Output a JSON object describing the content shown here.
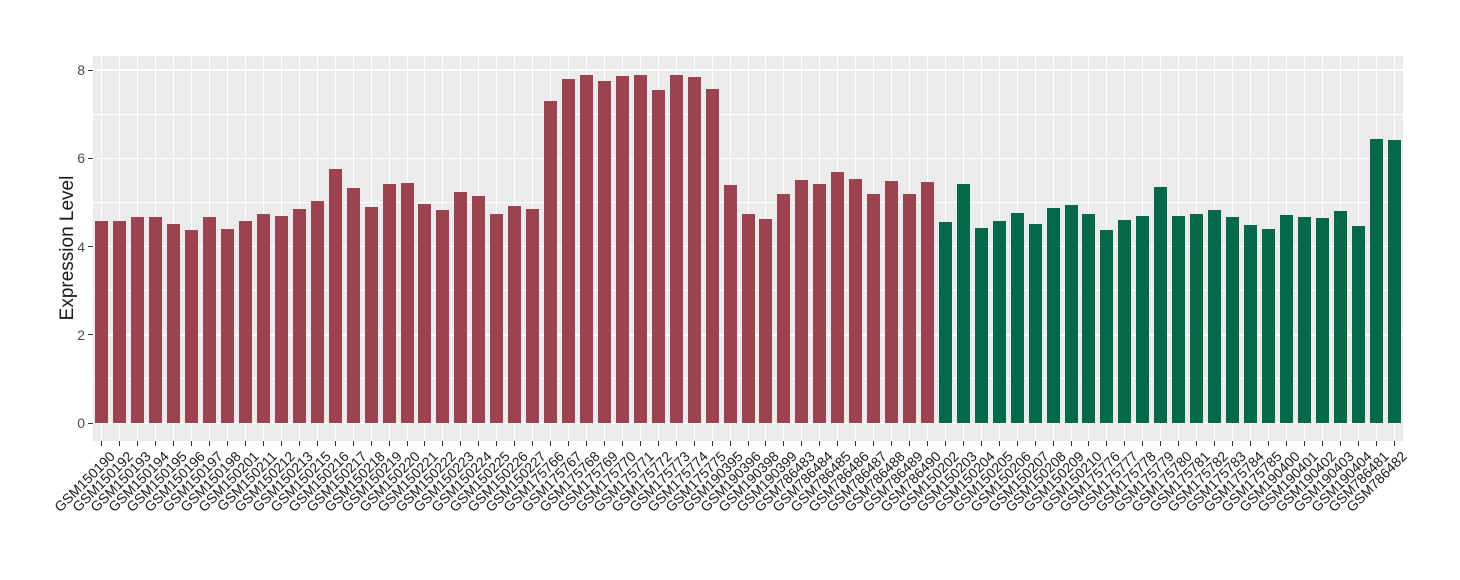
{
  "chart_data": {
    "type": "bar",
    "title": "",
    "xlabel": "",
    "ylabel": "Expression Level",
    "ylim": [
      0,
      8.4
    ],
    "yticks": [
      0,
      2,
      4,
      6,
      8
    ],
    "grid": true,
    "legend": false,
    "plot_background": "#EBEBEB",
    "gridline_color": "#FFFFFF",
    "tick_color": "#333333",
    "group_colors": {
      "red": "#9C4350",
      "green": "#04684B"
    },
    "categories": [
      "GSM150190",
      "GSM150192",
      "GSM150193",
      "GSM150194",
      "GSM150195",
      "GSM150196",
      "GSM150197",
      "GSM150198",
      "GSM150201",
      "GSM150211",
      "GSM150212",
      "GSM150213",
      "GSM150215",
      "GSM150216",
      "GSM150217",
      "GSM150218",
      "GSM150219",
      "GSM150220",
      "GSM150221",
      "GSM150222",
      "GSM150223",
      "GSM150224",
      "GSM150225",
      "GSM150226",
      "GSM150227",
      "GSM175766",
      "GSM175767",
      "GSM175768",
      "GSM175769",
      "GSM175770",
      "GSM175771",
      "GSM175772",
      "GSM175773",
      "GSM175774",
      "GSM175775",
      "GSM190395",
      "GSM190396",
      "GSM190398",
      "GSM190399",
      "GSM786483",
      "GSM786484",
      "GSM786485",
      "GSM786486",
      "GSM786487",
      "GSM786488",
      "GSM786489",
      "GSM786490",
      "GSM150202",
      "GSM150203",
      "GSM150204",
      "GSM150205",
      "GSM150206",
      "GSM150207",
      "GSM150208",
      "GSM150209",
      "GSM150210",
      "GSM175776",
      "GSM175777",
      "GSM175778",
      "GSM175779",
      "GSM175780",
      "GSM175781",
      "GSM175782",
      "GSM175783",
      "GSM175784",
      "GSM175785",
      "GSM190400",
      "GSM190401",
      "GSM190402",
      "GSM190403",
      "GSM190404",
      "GSM786481",
      "GSM786482"
    ],
    "values": [
      4.57,
      4.58,
      4.68,
      4.68,
      4.51,
      4.38,
      4.68,
      4.39,
      4.57,
      4.75,
      4.7,
      4.85,
      5.04,
      5.76,
      5.32,
      4.89,
      5.42,
      5.44,
      4.96,
      4.83,
      5.23,
      5.15,
      4.75,
      4.92,
      4.85,
      7.31,
      7.81,
      7.89,
      7.75,
      7.87,
      7.9,
      7.56,
      7.89,
      7.85,
      7.58,
      5.39,
      4.73,
      4.63,
      5.2,
      5.5,
      5.41,
      5.7,
      5.53,
      5.2,
      5.48,
      5.2,
      5.47,
      4.56,
      5.42,
      4.43,
      4.59,
      4.77,
      4.51,
      4.87,
      4.94,
      4.75,
      4.37,
      4.61,
      4.69,
      5.35,
      4.7,
      4.74,
      4.82,
      4.68,
      4.49,
      4.4,
      4.71,
      4.67,
      4.65,
      4.8,
      4.46,
      6.45,
      6.41
    ],
    "groups": [
      "red",
      "red",
      "red",
      "red",
      "red",
      "red",
      "red",
      "red",
      "red",
      "red",
      "red",
      "red",
      "red",
      "red",
      "red",
      "red",
      "red",
      "red",
      "red",
      "red",
      "red",
      "red",
      "red",
      "red",
      "red",
      "red",
      "red",
      "red",
      "red",
      "red",
      "red",
      "red",
      "red",
      "red",
      "red",
      "red",
      "red",
      "red",
      "red",
      "red",
      "red",
      "red",
      "red",
      "red",
      "red",
      "red",
      "red",
      "green",
      "green",
      "green",
      "green",
      "green",
      "green",
      "green",
      "green",
      "green",
      "green",
      "green",
      "green",
      "green",
      "green",
      "green",
      "green",
      "green",
      "green",
      "green",
      "green",
      "green",
      "green",
      "green",
      "green",
      "green",
      "green"
    ]
  }
}
